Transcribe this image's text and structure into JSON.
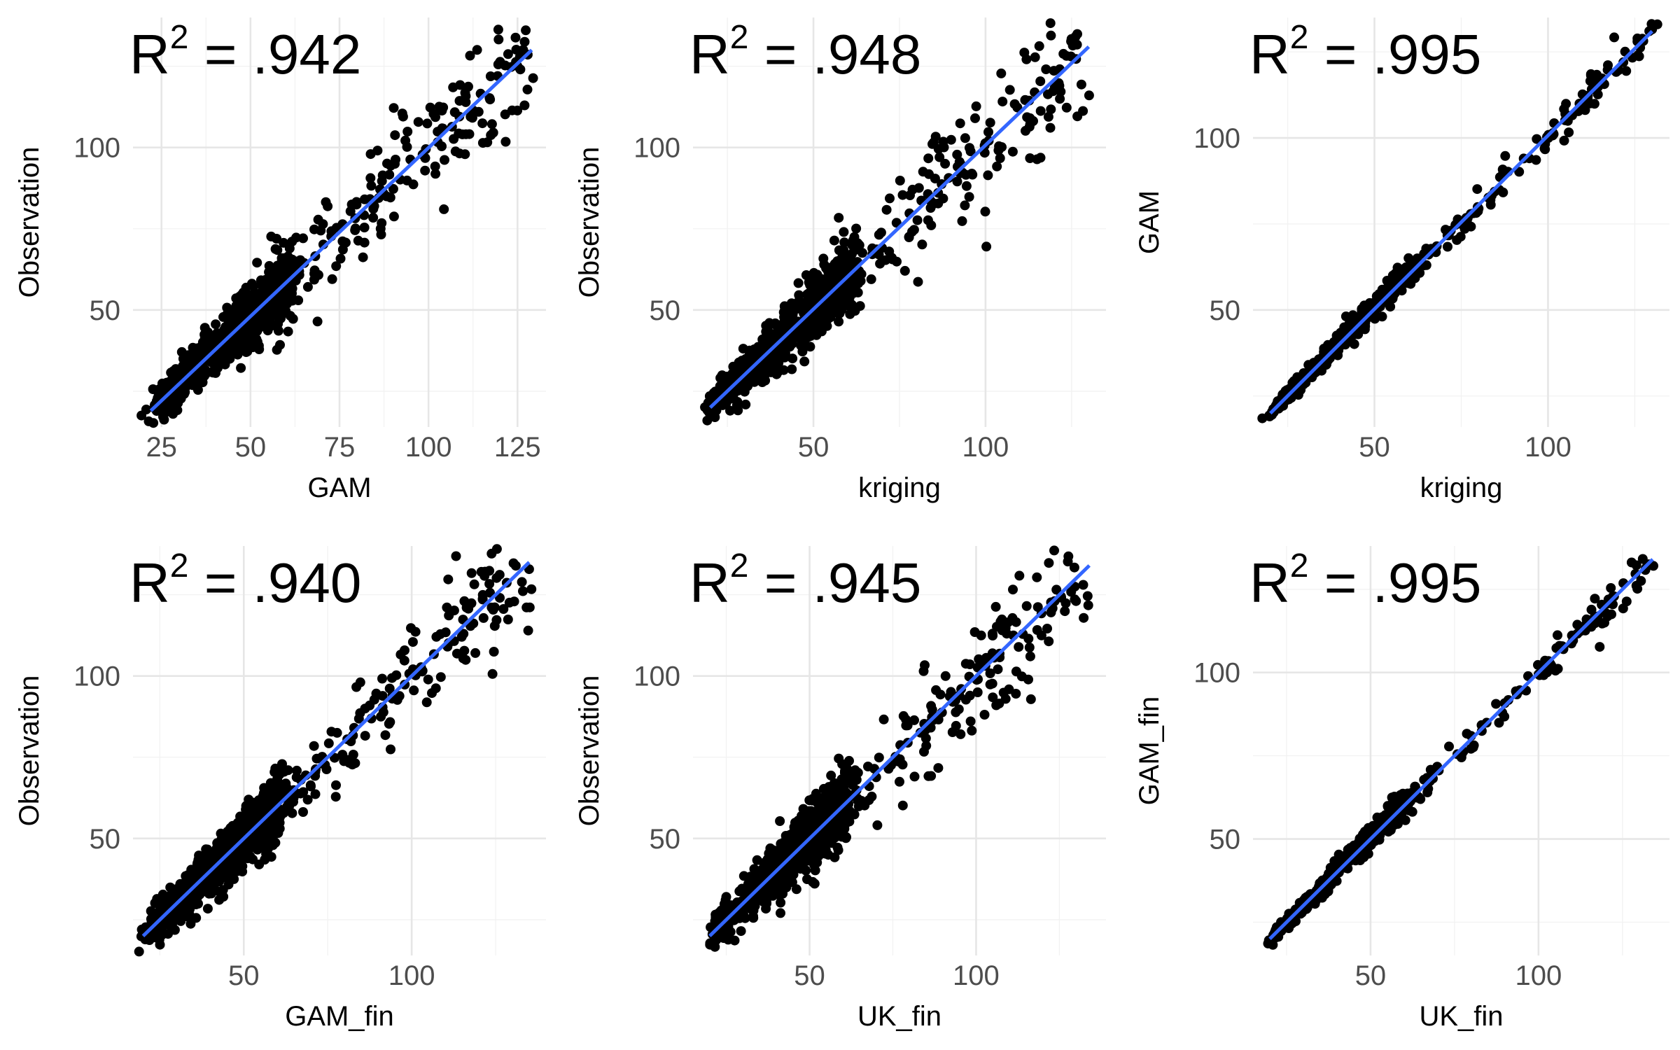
{
  "chart_data": [
    {
      "type": "scatter",
      "r2_label": {
        "prefix": "R",
        "superscript": "2",
        "value": " = .942"
      },
      "r2": 0.942,
      "xlabel": "GAM",
      "ylabel": "Observation",
      "xlim": [
        17,
        133
      ],
      "ylim": [
        14,
        140
      ],
      "xticks": [
        25,
        50,
        75,
        100,
        125
      ],
      "yticks": [
        50,
        100
      ],
      "xtick_labels": [
        "25",
        "50",
        "75",
        "100",
        "125"
      ],
      "ytick_labels": [
        "50",
        "100"
      ],
      "fit": {
        "x": [
          22,
          129
        ],
        "y": [
          19,
          130
        ]
      },
      "grid": true,
      "seed": 11
    },
    {
      "type": "scatter",
      "r2_label": {
        "prefix": "R",
        "superscript": "2",
        "value": " = .948"
      },
      "r2": 0.948,
      "xlabel": "kriging",
      "ylabel": "Observation",
      "xlim": [
        15,
        135
      ],
      "ylim": [
        14,
        140
      ],
      "xticks": [
        50,
        100
      ],
      "yticks": [
        50,
        100
      ],
      "xtick_labels": [
        "50",
        "100"
      ],
      "ytick_labels": [
        "50",
        "100"
      ],
      "fit": {
        "x": [
          20,
          130
        ],
        "y": [
          20,
          131
        ]
      },
      "grid": true,
      "seed": 23
    },
    {
      "type": "scatter",
      "r2_label": {
        "prefix": "R",
        "superscript": "2",
        "value": " = .995"
      },
      "r2": 0.995,
      "xlabel": "kriging",
      "ylabel": "GAM",
      "xlim": [
        15,
        135
      ],
      "ylim": [
        16,
        135
      ],
      "xticks": [
        50,
        100
      ],
      "yticks": [
        50,
        100
      ],
      "xtick_labels": [
        "50",
        "100"
      ],
      "ytick_labels": [
        "50",
        "100"
      ],
      "fit": {
        "x": [
          20,
          130
        ],
        "y": [
          20,
          131
        ]
      },
      "grid": true,
      "seed": 37
    },
    {
      "type": "scatter",
      "r2_label": {
        "prefix": "R",
        "superscript": "2",
        "value": " = .940"
      },
      "r2": 0.94,
      "xlabel": "GAM_fin",
      "ylabel": "Observation",
      "xlim": [
        17,
        140
      ],
      "ylim": [
        14,
        140
      ],
      "xticks": [
        50,
        100
      ],
      "yticks": [
        50,
        100
      ],
      "xtick_labels": [
        "50",
        "100"
      ],
      "ytick_labels": [
        "50",
        "100"
      ],
      "fit": {
        "x": [
          20,
          135
        ],
        "y": [
          20,
          135
        ]
      },
      "grid": true,
      "seed": 41
    },
    {
      "type": "scatter",
      "r2_label": {
        "prefix": "R",
        "superscript": "2",
        "value": " = .945"
      },
      "r2": 0.945,
      "xlabel": "UK_fin",
      "ylabel": "Observation",
      "xlim": [
        15,
        139
      ],
      "ylim": [
        14,
        140
      ],
      "xticks": [
        50,
        100
      ],
      "yticks": [
        50,
        100
      ],
      "xtick_labels": [
        "50",
        "100"
      ],
      "ytick_labels": [
        "50",
        "100"
      ],
      "fit": {
        "x": [
          20,
          134
        ],
        "y": [
          20,
          134
        ]
      },
      "grid": true,
      "seed": 53
    },
    {
      "type": "scatter",
      "r2_label": {
        "prefix": "R",
        "superscript": "2",
        "value": " = .995"
      },
      "r2": 0.995,
      "xlabel": "UK_fin",
      "ylabel": "GAM_fin",
      "xlim": [
        15,
        139
      ],
      "ylim": [
        15,
        138
      ],
      "xticks": [
        50,
        100
      ],
      "yticks": [
        50,
        100
      ],
      "xtick_labels": [
        "50",
        "100"
      ],
      "ytick_labels": [
        "50",
        "100"
      ],
      "fit": {
        "x": [
          20,
          134
        ],
        "y": [
          20,
          134
        ]
      },
      "grid": true,
      "seed": 67
    }
  ]
}
